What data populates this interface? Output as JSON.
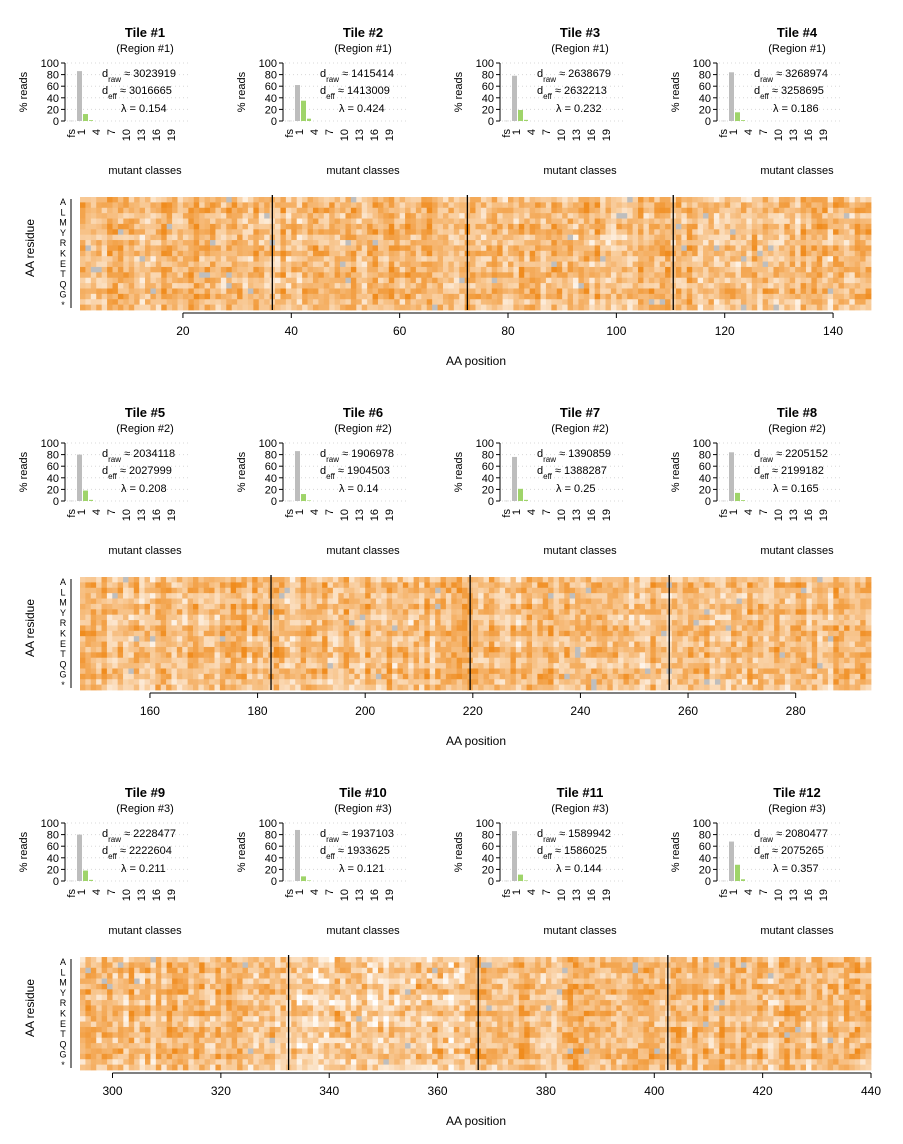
{
  "page_title": "",
  "chart_data": {
    "type": "heatmap",
    "tile_title_prefix": "Tile #",
    "region_prefix": "(Region #",
    "bar_panel": {
      "ylabel": "% reads",
      "xlabel": "mutant classes",
      "yticks": [
        "0",
        "20",
        "40",
        "60",
        "80",
        "100"
      ],
      "class_ticks": [
        "fs",
        "1",
        "4",
        "7",
        "10",
        "13",
        "16",
        "19"
      ],
      "ylim": [
        0,
        100
      ],
      "bar_colors": {
        "fs": "#c0c0c0",
        "wt": "#bdbdbd",
        "1": "#9fd46a",
        "2": "#9fd46a"
      }
    },
    "tiles": [
      {
        "tile": "1",
        "region": "1",
        "d_raw": "3023919",
        "d_eff": "3016665",
        "lambda": "0.154",
        "bars": [
          0.5,
          86,
          12,
          1.5
        ]
      },
      {
        "tile": "2",
        "region": "1",
        "d_raw": "1415414",
        "d_eff": "1413009",
        "lambda": "0.424",
        "bars": [
          0.5,
          62,
          35,
          4
        ]
      },
      {
        "tile": "3",
        "region": "1",
        "d_raw": "2638679",
        "d_eff": "2632213",
        "lambda": "0.232",
        "bars": [
          0.5,
          78,
          19,
          2
        ]
      },
      {
        "tile": "4",
        "region": "1",
        "d_raw": "3268974",
        "d_eff": "3258695",
        "lambda": "0.186",
        "bars": [
          0.5,
          84,
          15,
          1.5
        ]
      },
      {
        "tile": "5",
        "region": "2",
        "d_raw": "2034118",
        "d_eff": "2027999",
        "lambda": "0.208",
        "bars": [
          0.5,
          80,
          18,
          2
        ]
      },
      {
        "tile": "6",
        "region": "2",
        "d_raw": "1906978",
        "d_eff": "1904503",
        "lambda": "0.14",
        "bars": [
          0.5,
          86,
          12,
          1
        ]
      },
      {
        "tile": "7",
        "region": "2",
        "d_raw": "1390859",
        "d_eff": "1388287",
        "lambda": "0.25",
        "bars": [
          0.5,
          76,
          21,
          2
        ]
      },
      {
        "tile": "8",
        "region": "2",
        "d_raw": "2205152",
        "d_eff": "2199182",
        "lambda": "0.165",
        "bars": [
          0.5,
          84,
          14,
          1.5
        ]
      },
      {
        "tile": "9",
        "region": "3",
        "d_raw": "2228477",
        "d_eff": "2222604",
        "lambda": "0.211",
        "bars": [
          0.5,
          80,
          18,
          2
        ]
      },
      {
        "tile": "10",
        "region": "3",
        "d_raw": "1937103",
        "d_eff": "1933625",
        "lambda": "0.121",
        "bars": [
          0.5,
          88,
          8,
          1
        ]
      },
      {
        "tile": "11",
        "region": "3",
        "d_raw": "1589942",
        "d_eff": "1586025",
        "lambda": "0.144",
        "bars": [
          0.5,
          86,
          11,
          1
        ]
      },
      {
        "tile": "12",
        "region": "3",
        "d_raw": "2080477",
        "d_eff": "2075265",
        "lambda": "0.357",
        "bars": [
          0.5,
          68,
          28,
          3
        ]
      }
    ],
    "heatmaps": [
      {
        "xrange": [
          1,
          147
        ],
        "xticks": [
          20,
          40,
          60,
          80,
          100,
          120,
          140
        ],
        "tile_boundaries": [
          36.5,
          72.5,
          110.5
        ]
      },
      {
        "xrange": [
          147,
          294
        ],
        "xticks": [
          160,
          180,
          200,
          220,
          240,
          260,
          280
        ],
        "tile_boundaries": [
          182.5,
          219.5,
          256.5
        ]
      },
      {
        "xrange": [
          294,
          440
        ],
        "xticks": [
          300,
          320,
          340,
          360,
          380,
          400,
          420,
          440
        ],
        "tile_boundaries": [
          332.5,
          367.5,
          402.5
        ]
      }
    ],
    "heatmap_ylabel": "AA residue",
    "heatmap_xlabel": "AA position",
    "residue_labels": [
      "A",
      "L",
      "M",
      "Y",
      "R",
      "K",
      "E",
      "T",
      "Q",
      "G",
      "*"
    ],
    "colors": {
      "high": "#f08c1e",
      "low": "#ffffff",
      "missing": "#bebebe",
      "line": "#000000"
    }
  }
}
